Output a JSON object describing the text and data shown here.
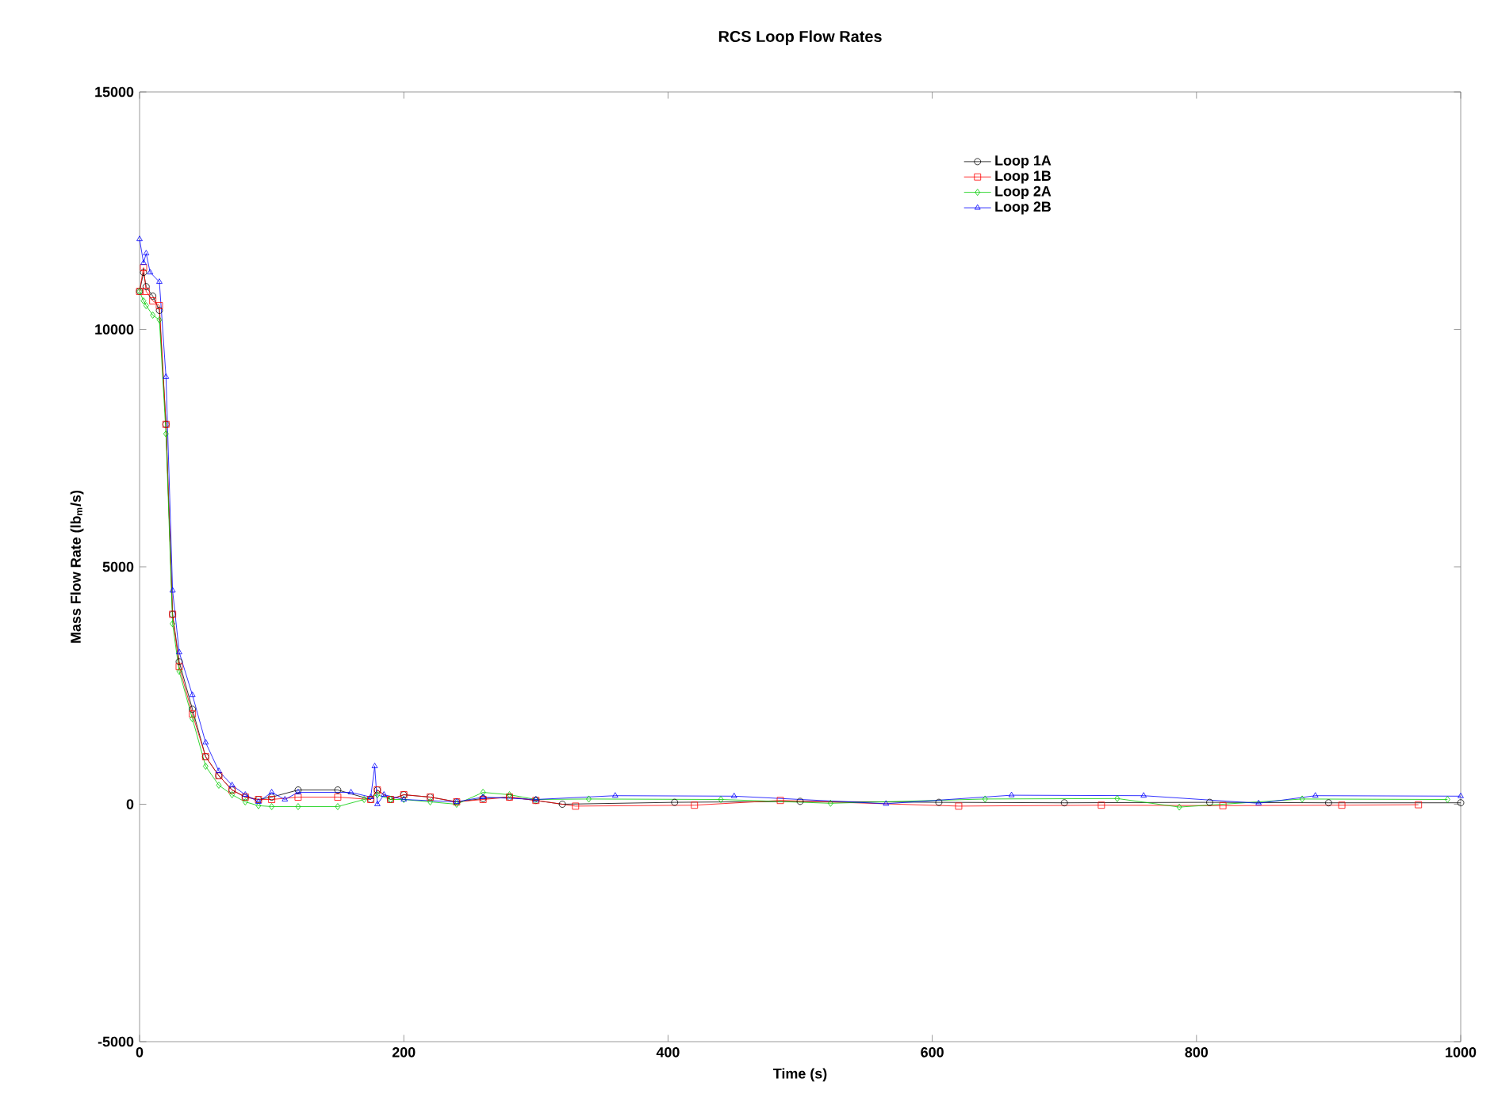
{
  "chart_data": {
    "type": "line",
    "title": "RCS Loop Flow Rates",
    "xlabel": "Time (s)",
    "ylabel": "Mass Flow Rate (lb$_{m}$/s)",
    "xlim": [
      0,
      1000
    ],
    "ylim": [
      -5000,
      15000
    ],
    "xticks": [
      0,
      200,
      400,
      600,
      800,
      1000
    ],
    "yticks": [
      -5000,
      0,
      5000,
      10000,
      15000
    ],
    "grid": false,
    "legend": "top right",
    "line_style": "solid",
    "series": [
      {
        "name": "Loop 1A",
        "color": "#000000",
        "marker": "circle",
        "x": [
          0,
          3,
          5,
          10,
          15,
          20,
          25,
          30,
          40,
          50,
          60,
          70,
          80,
          90,
          100,
          120,
          150,
          175,
          180,
          190,
          200,
          220,
          240,
          260,
          280,
          300,
          320,
          405,
          500,
          605,
          700,
          810,
          900,
          1000
        ],
        "values": [
          10800,
          11200,
          10900,
          10700,
          10400,
          8000,
          4000,
          3000,
          2000,
          1000,
          600,
          300,
          150,
          100,
          150,
          300,
          300,
          100,
          300,
          100,
          200,
          150,
          50,
          120,
          150,
          80,
          0,
          40,
          60,
          40,
          30,
          40,
          30,
          30
        ]
      },
      {
        "name": "Loop 1B",
        "color": "#ff0000",
        "marker": "square",
        "x": [
          0,
          3,
          5,
          10,
          15,
          20,
          25,
          30,
          40,
          50,
          60,
          70,
          80,
          90,
          100,
          120,
          150,
          175,
          180,
          190,
          200,
          220,
          240,
          260,
          280,
          300,
          330,
          420,
          485,
          620,
          728,
          820,
          910,
          968
        ],
        "values": [
          10800,
          11300,
          10800,
          10600,
          10500,
          8000,
          4000,
          2900,
          1900,
          1000,
          600,
          300,
          150,
          100,
          100,
          150,
          150,
          100,
          300,
          100,
          200,
          150,
          50,
          100,
          150,
          80,
          -40,
          -20,
          80,
          -40,
          -20,
          -30,
          -20,
          -10
        ]
      },
      {
        "name": "Loop 2A",
        "color": "#00cc00",
        "marker": "diamond",
        "x": [
          0,
          3,
          5,
          10,
          15,
          20,
          25,
          30,
          40,
          50,
          60,
          70,
          80,
          90,
          100,
          120,
          150,
          170,
          180,
          190,
          200,
          220,
          240,
          260,
          280,
          300,
          340,
          440,
          523,
          640,
          740,
          787,
          880,
          990
        ],
        "values": [
          10800,
          10600,
          10500,
          10300,
          10200,
          7800,
          3800,
          2800,
          1800,
          800,
          400,
          200,
          50,
          -30,
          -50,
          -50,
          -50,
          100,
          200,
          100,
          100,
          50,
          0,
          250,
          200,
          100,
          110,
          100,
          20,
          110,
          120,
          -60,
          110,
          100
        ]
      },
      {
        "name": "Loop 2B",
        "color": "#0000ff",
        "marker": "triangle",
        "x": [
          0,
          3,
          5,
          8,
          15,
          20,
          25,
          30,
          40,
          50,
          60,
          70,
          80,
          90,
          100,
          110,
          120,
          160,
          175,
          178,
          180,
          185,
          200,
          240,
          260,
          300,
          360,
          450,
          565,
          660,
          760,
          847,
          890,
          1000
        ],
        "values": [
          11900,
          11400,
          11600,
          11200,
          11000,
          9000,
          4500,
          3200,
          2300,
          1300,
          700,
          400,
          200,
          50,
          250,
          100,
          250,
          250,
          150,
          800,
          0,
          200,
          100,
          50,
          150,
          100,
          180,
          170,
          10,
          190,
          180,
          20,
          180,
          170
        ]
      }
    ]
  }
}
